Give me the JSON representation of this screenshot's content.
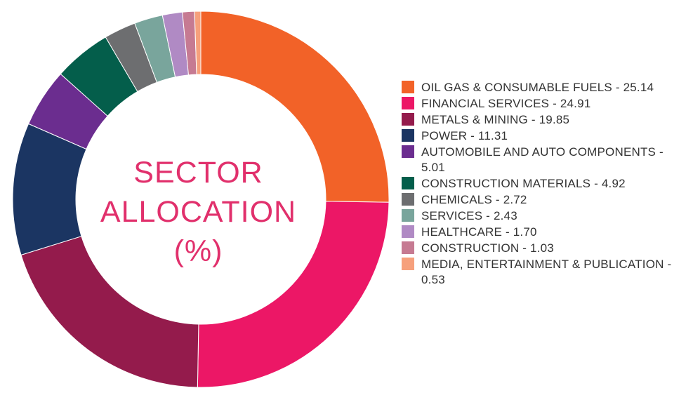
{
  "chart_data": {
    "type": "donut",
    "title": "SECTOR ALLOCATION (%)",
    "title_lines": [
      "SECTOR",
      "ALLOCATION",
      "(%)"
    ],
    "legend_position": "right",
    "series": [
      {
        "category": "OIL GAS & CONSUMABLE FUELS",
        "value": 25.14,
        "label": "OIL GAS & CONSUMABLE FUELS - 25.14",
        "color": "#f26228"
      },
      {
        "category": "FINANCIAL SERVICES",
        "value": 24.91,
        "label": "FINANCIAL SERVICES - 24.91",
        "color": "#ec1766"
      },
      {
        "category": "METALS & MINING",
        "value": 19.85,
        "label": "METALS & MINING - 19.85",
        "color": "#941b4c"
      },
      {
        "category": "POWER",
        "value": 11.31,
        "label": "POWER - 11.31",
        "color": "#1b3562"
      },
      {
        "category": "AUTOMOBILE AND AUTO COMPONENTS",
        "value": 5.01,
        "label": "AUTOMOBILE AND AUTO COMPONENTS - 5.01",
        "color": "#6b2d8f"
      },
      {
        "category": "CONSTRUCTION MATERIALS",
        "value": 4.92,
        "label": "CONSTRUCTION MATERIALS - 4.92",
        "color": "#045e4b"
      },
      {
        "category": "CHEMICALS",
        "value": 2.72,
        "label": "CHEMICALS - 2.72",
        "color": "#6d6e70"
      },
      {
        "category": "SERVICES",
        "value": 2.43,
        "label": "SERVICES - 2.43",
        "color": "#79a59c"
      },
      {
        "category": "HEALTHCARE",
        "value": 1.7,
        "label": "HEALTHCARE - 1.70",
        "color": "#b08ac4"
      },
      {
        "category": "CONSTRUCTION",
        "value": 1.03,
        "label": "CONSTRUCTION - 1.03",
        "color": "#c67a92"
      },
      {
        "category": "MEDIA, ENTERTAINMENT & PUBLICATION",
        "value": 0.53,
        "label": "MEDIA, ENTERTAINMENT & PUBLICATION - 0.53",
        "color": "#f6a07c"
      }
    ]
  }
}
